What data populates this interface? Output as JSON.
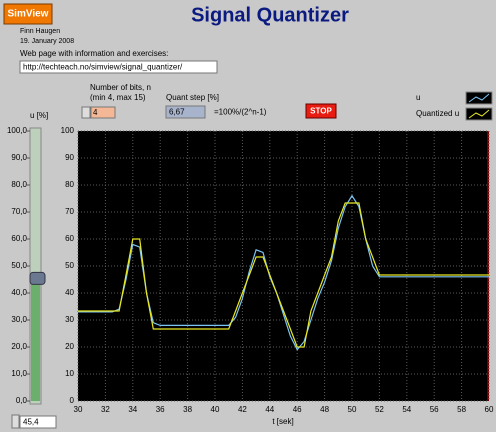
{
  "header": {
    "button": "SimView",
    "title": "Signal Quantizer",
    "author": "Finn Haugen",
    "date": "19. January 2008",
    "web_label": "Web page with information and exercises:",
    "url": "http://techteach.no/simview/signal_quantizer/"
  },
  "controls": {
    "bits_label": "Number of bits, n",
    "bits_range": "(min 4, max 15)",
    "bits": "4",
    "quant_label": "Quant step [%]",
    "quant": "6,67",
    "quant_formula": "=100%/(2^n-1)",
    "stop": "STOP"
  },
  "slider": {
    "label": "u [%]",
    "ylim": [
      0,
      100
    ],
    "ticks": [
      {
        "value": 0,
        "label": "0,0"
      },
      {
        "value": 10,
        "label": "10,0"
      },
      {
        "value": 20,
        "label": "20,0"
      },
      {
        "value": 30,
        "label": "30,0"
      },
      {
        "value": 40,
        "label": "40,0"
      },
      {
        "value": 50,
        "label": "50,0"
      },
      {
        "value": 60,
        "label": "60,0"
      },
      {
        "value": 70,
        "label": "70,0"
      },
      {
        "value": 80,
        "label": "80,0"
      },
      {
        "value": 90,
        "label": "90,0"
      },
      {
        "value": 100,
        "label": "100,0"
      }
    ],
    "value": {
      "value": 45.4,
      "label": "45,4"
    }
  },
  "chart_data": {
    "type": "line",
    "x_label": "t [sek]",
    "x": [
      30,
      30.5,
      31,
      31.5,
      32,
      32.5,
      33,
      33.5,
      34,
      34.5,
      35,
      35.5,
      36,
      36.5,
      37,
      37.5,
      38,
      38.5,
      39,
      39.5,
      40,
      40.5,
      41,
      41.5,
      42,
      42.5,
      43,
      43.5,
      44,
      44.5,
      45,
      45.5,
      46,
      46.5,
      47,
      47.5,
      48,
      48.5,
      49,
      49.5,
      50,
      50.5,
      51,
      51.5,
      52,
      52.5,
      53,
      53.5,
      54,
      54.5,
      55,
      55.5,
      56,
      56.5,
      57,
      57.5,
      58,
      58.5,
      59,
      59.5,
      60
    ],
    "xlim": [
      30,
      60
    ],
    "xticks": [
      30,
      32,
      34,
      36,
      38,
      40,
      42,
      44,
      46,
      48,
      50,
      52,
      54,
      56,
      58,
      60
    ],
    "ylim": [
      0,
      100
    ],
    "yticks": [
      0,
      10,
      20,
      30,
      40,
      50,
      60,
      70,
      80,
      90,
      100
    ],
    "grid": true,
    "series": [
      {
        "name": "u",
        "color": "#7cc4f4",
        "values": [
          33,
          33,
          33,
          33,
          33,
          33,
          34,
          45,
          58,
          57,
          40,
          29,
          28,
          28,
          28,
          28,
          28,
          28,
          28,
          28,
          28,
          28,
          28,
          31,
          38,
          48,
          56,
          55,
          46,
          40,
          32,
          24,
          19,
          22,
          30,
          38,
          44,
          52,
          64,
          72,
          76,
          72,
          60,
          50,
          46,
          46,
          46,
          46,
          46,
          46,
          46,
          46,
          46,
          46,
          46,
          46,
          46,
          46,
          46,
          46,
          46
        ]
      },
      {
        "name": "Quantized u",
        "color": "#e8e820",
        "values": [
          33.33,
          33.33,
          33.33,
          33.33,
          33.33,
          33.33,
          33.33,
          46.67,
          60,
          60,
          40,
          26.67,
          26.67,
          26.67,
          26.67,
          26.67,
          26.67,
          26.67,
          26.67,
          26.67,
          26.67,
          26.67,
          26.67,
          33.33,
          40,
          46.67,
          53.33,
          53.33,
          46.67,
          40,
          33.33,
          26.67,
          20,
          20,
          33.33,
          40,
          46.67,
          53.33,
          66.67,
          73.33,
          73.33,
          73.33,
          60,
          53.33,
          46.67,
          46.67,
          46.67,
          46.67,
          46.67,
          46.67,
          46.67,
          46.67,
          46.67,
          46.67,
          46.67,
          46.67,
          46.67,
          46.67,
          46.67,
          46.67,
          46.67
        ]
      }
    ]
  }
}
